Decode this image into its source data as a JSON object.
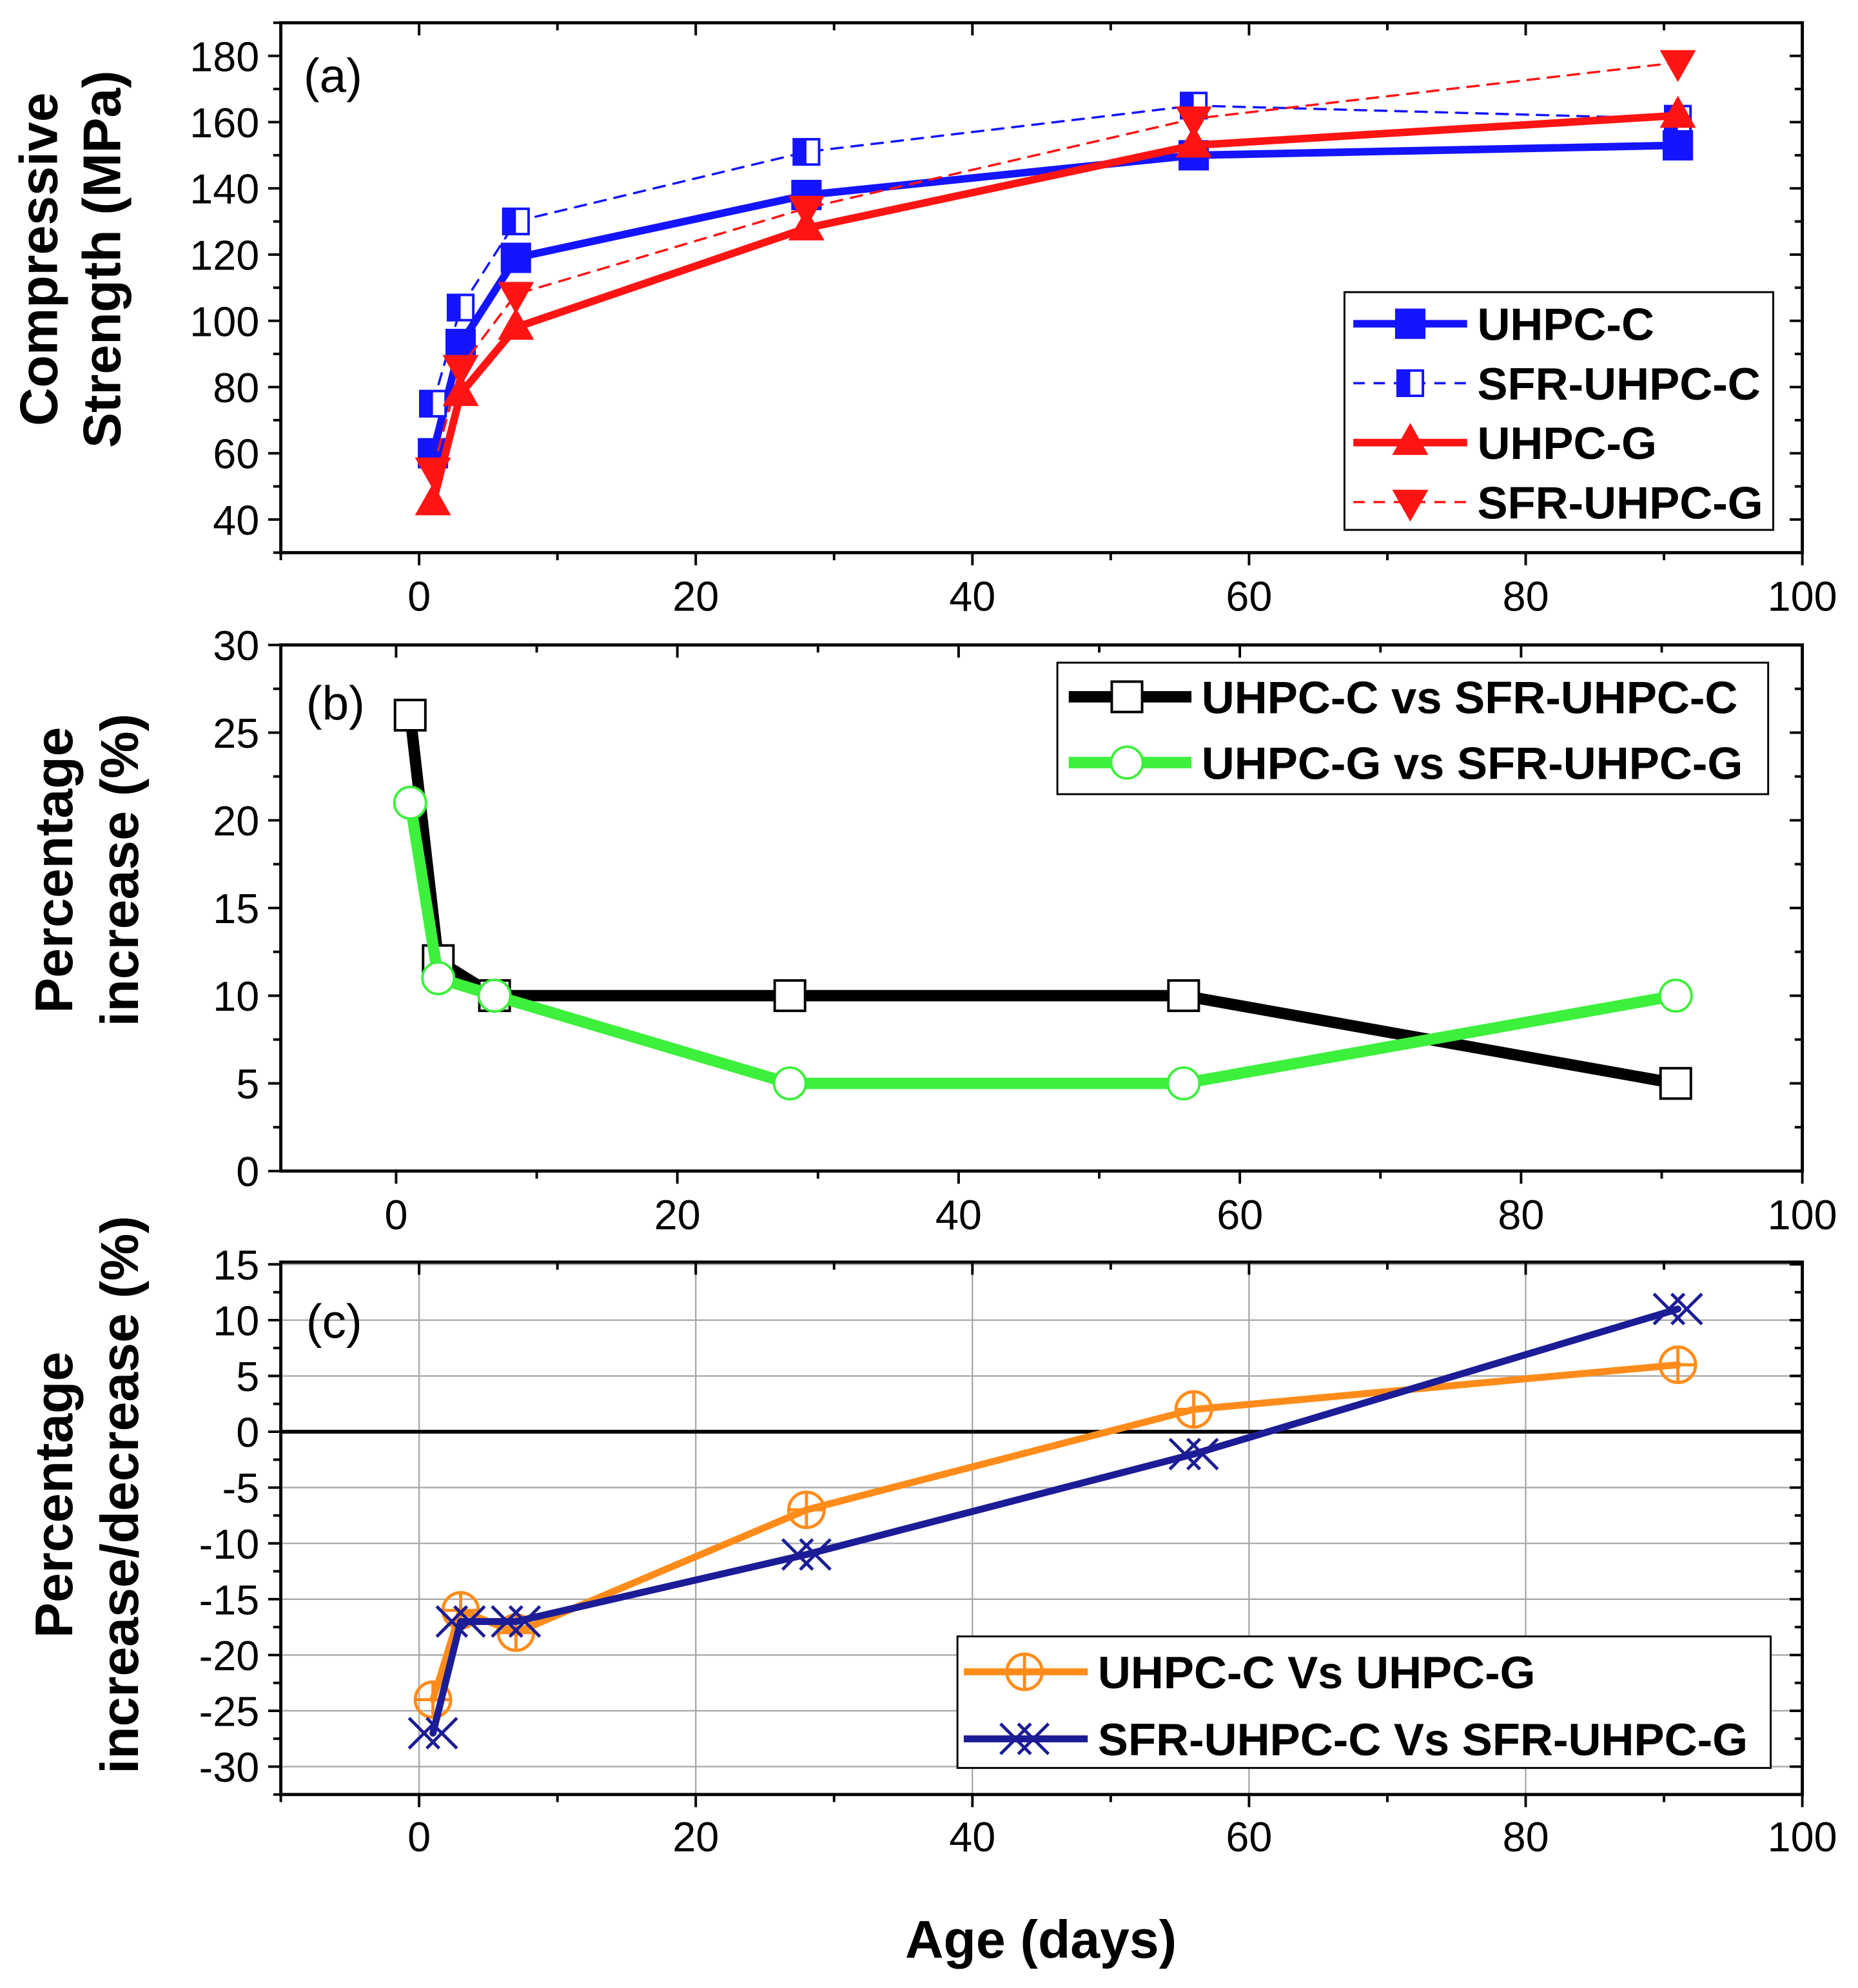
{
  "chart_data": [
    {
      "panel_label": "(a)",
      "type": "line",
      "title": "",
      "xlabel": "",
      "ylabel": [
        "Compressive",
        "Strength (MPa)"
      ],
      "xlim": [
        -10,
        100
      ],
      "ylim": [
        30,
        190
      ],
      "xticks": [
        0,
        20,
        40,
        60,
        80,
        100
      ],
      "yticks": [
        40,
        60,
        80,
        100,
        120,
        140,
        160,
        180
      ],
      "grid": false,
      "legend_position": "bottom-right",
      "series": [
        {
          "name": "UHPC-C",
          "color": "#1414ff",
          "x": [
            1,
            3,
            7,
            28,
            56,
            91
          ],
          "y": [
            60,
            93,
            119,
            138,
            150,
            153
          ]
        },
        {
          "name": "SFR-UHPC-C",
          "color": "#1414ff",
          "x": [
            1,
            3,
            7,
            28,
            56,
            91
          ],
          "y": [
            75,
            104,
            130,
            151,
            165,
            161
          ]
        },
        {
          "name": "UHPC-G",
          "color": "#ff1414",
          "x": [
            1,
            3,
            7,
            28,
            56,
            91
          ],
          "y": [
            45,
            78,
            98,
            128,
            153,
            162
          ]
        },
        {
          "name": "SFR-UHPC-G",
          "color": "#ff1414",
          "x": [
            1,
            3,
            7,
            28,
            56,
            91
          ],
          "y": [
            55,
            86,
            108,
            134,
            161,
            178
          ]
        }
      ]
    },
    {
      "panel_label": "(b)",
      "type": "line",
      "title": "",
      "xlabel": "",
      "ylabel": [
        "Percentage",
        "increase (%)"
      ],
      "xlim": [
        -8.2,
        100
      ],
      "ylim": [
        0,
        30
      ],
      "xticks": [
        0,
        20,
        40,
        60,
        80,
        100
      ],
      "yticks": [
        0,
        5,
        10,
        15,
        20,
        25,
        30
      ],
      "grid": false,
      "legend_position": "top-right",
      "series": [
        {
          "name": "UHPC-C vs SFR-UHPC-C",
          "color": "#000000",
          "x": [
            1,
            3,
            7,
            28,
            56,
            91
          ],
          "y": [
            26,
            12,
            10,
            10,
            10,
            5
          ]
        },
        {
          "name": "UHPC-G vs SFR-UHPC-G",
          "color": "#3cf03c",
          "x": [
            1,
            3,
            7,
            28,
            56,
            91
          ],
          "y": [
            21,
            11,
            10,
            5,
            5,
            10
          ]
        }
      ]
    },
    {
      "panel_label": "(c)",
      "type": "line",
      "title": "",
      "xlabel": "Age (days)",
      "ylabel": [
        "Percentage",
        "increase/decrease (%)"
      ],
      "xlim": [
        -10,
        100
      ],
      "ylim": [
        -32.5,
        15.2
      ],
      "xticks": [
        0,
        20,
        40,
        60,
        80,
        100
      ],
      "yticks": [
        -30,
        -25,
        -20,
        -15,
        -10,
        -5,
        0,
        5,
        10,
        15
      ],
      "grid": true,
      "legend_position": "bottom-right",
      "series": [
        {
          "name": "UHPC-C Vs UHPC-G",
          "color": "#ff8c1a",
          "x": [
            1,
            3,
            7,
            28,
            56,
            91
          ],
          "y": [
            -24,
            -16,
            -18,
            -7,
            2,
            6
          ]
        },
        {
          "name": "SFR-UHPC-C Vs SFR-UHPC-G",
          "color": "#1c1c96",
          "x": [
            1,
            3,
            7,
            28,
            56,
            91
          ],
          "y": [
            -27,
            -17,
            -17,
            -11,
            -2,
            11
          ]
        }
      ]
    }
  ]
}
